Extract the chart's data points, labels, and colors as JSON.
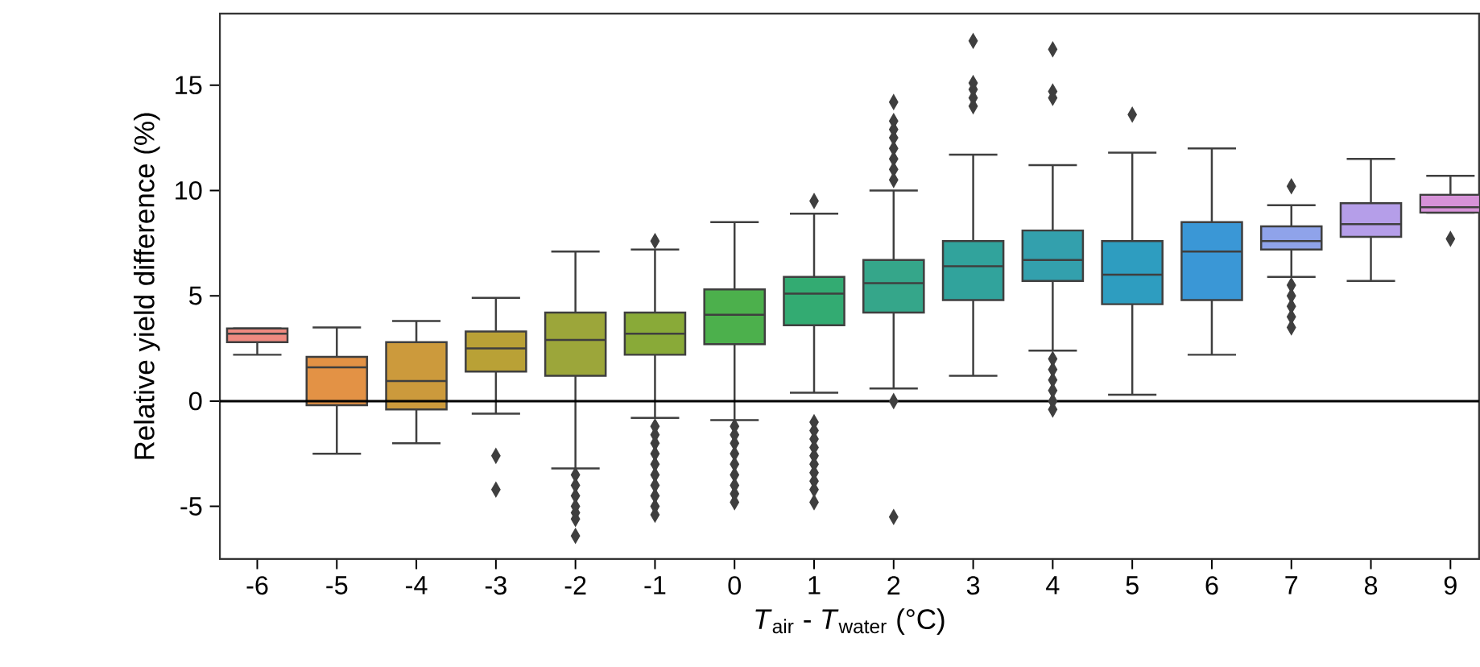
{
  "chart_data": {
    "type": "box",
    "xlabel": "*T*$_{air}$ - *T*$_{water}$ (°C)",
    "ylabel": "Relative yield difference (%)",
    "categories": [
      "-6",
      "-5",
      "-4",
      "-3",
      "-2",
      "-1",
      "0",
      "1",
      "2",
      "3",
      "4",
      "5",
      "6",
      "7",
      "8",
      "9"
    ],
    "colors": [
      "#ef8a80",
      "#e39245",
      "#cc9a3c",
      "#b9a136",
      "#9ca63a",
      "#89aa38",
      "#4cb04c",
      "#33ab72",
      "#35a68a",
      "#31a39c",
      "#33a0ad",
      "#2e9dc0",
      "#3a97d6",
      "#8fa3ea",
      "#b59ee9",
      "#d692d8"
    ],
    "boxes": [
      {
        "low": 2.2,
        "q1": 2.8,
        "median": 3.2,
        "q3": 3.45,
        "high": 3.45
      },
      {
        "low": -2.5,
        "q1": -0.2,
        "median": 1.6,
        "q3": 2.1,
        "high": 3.5
      },
      {
        "low": -2.0,
        "q1": -0.4,
        "median": 0.95,
        "q3": 2.8,
        "high": 3.8
      },
      {
        "low": -0.6,
        "q1": 1.4,
        "median": 2.5,
        "q3": 3.3,
        "high": 4.9,
        "outliers": [
          -2.6,
          -4.2
        ]
      },
      {
        "low": -3.2,
        "q1": 1.2,
        "median": 2.9,
        "q3": 4.2,
        "high": 7.1,
        "outliers": [
          -3.5,
          -4.0,
          -4.5,
          -5.0,
          -5.3,
          -5.6,
          -6.4
        ]
      },
      {
        "low": -0.8,
        "q1": 2.2,
        "median": 3.2,
        "q3": 4.2,
        "high": 7.2,
        "outliers": [
          7.6,
          -1.2,
          -1.6,
          -2.0,
          -2.5,
          -3.0,
          -3.5,
          -4.0,
          -4.5,
          -5.0,
          -5.4
        ]
      },
      {
        "low": -0.9,
        "q1": 2.7,
        "median": 4.1,
        "q3": 5.3,
        "high": 8.5,
        "outliers": [
          -1.2,
          -1.6,
          -2.0,
          -2.5,
          -3.0,
          -3.5,
          -4.0,
          -4.4,
          -4.8
        ]
      },
      {
        "low": 0.4,
        "q1": 3.6,
        "median": 5.1,
        "q3": 5.9,
        "high": 8.9,
        "outliers": [
          9.5,
          -1.0,
          -1.4,
          -1.8,
          -2.2,
          -2.6,
          -3.0,
          -3.4,
          -3.8,
          -4.2,
          -4.8
        ]
      },
      {
        "low": 0.6,
        "q1": 4.2,
        "median": 5.6,
        "q3": 6.7,
        "high": 10.0,
        "outliers": [
          10.5,
          11.0,
          11.5,
          12.0,
          12.5,
          12.9,
          13.3,
          14.2,
          0.0,
          -5.5
        ]
      },
      {
        "low": 1.2,
        "q1": 4.8,
        "median": 6.4,
        "q3": 7.6,
        "high": 11.7,
        "outliers": [
          14.0,
          14.4,
          14.8,
          15.1,
          17.1
        ]
      },
      {
        "low": 2.4,
        "q1": 5.7,
        "median": 6.7,
        "q3": 8.1,
        "high": 11.2,
        "outliers": [
          14.4,
          14.7,
          16.7,
          2.0,
          1.5,
          1.0,
          0.5,
          0.0,
          -0.4
        ]
      },
      {
        "low": 0.3,
        "q1": 4.6,
        "median": 6.0,
        "q3": 7.6,
        "high": 11.8,
        "outliers": [
          13.6
        ]
      },
      {
        "low": 2.2,
        "q1": 4.8,
        "median": 7.1,
        "q3": 8.5,
        "high": 12.0
      },
      {
        "low": 5.9,
        "q1": 7.2,
        "median": 7.6,
        "q3": 8.3,
        "high": 9.3,
        "outliers": [
          10.2,
          5.5,
          5.0,
          4.5,
          4.0,
          3.5
        ]
      },
      {
        "low": 5.7,
        "q1": 7.8,
        "median": 8.4,
        "q3": 9.4,
        "high": 11.5
      },
      {
        "low": 8.95,
        "q1": 8.95,
        "median": 9.2,
        "q3": 9.8,
        "high": 10.7,
        "outliers": [
          7.7
        ]
      }
    ],
    "ylim": [
      -7.5,
      18.4
    ],
    "yticks": [
      -5,
      0,
      5,
      10,
      15
    ],
    "marker": "diamond",
    "ref_lines": [
      {
        "axis": "y",
        "value": 0,
        "color": "#000000"
      }
    ]
  }
}
